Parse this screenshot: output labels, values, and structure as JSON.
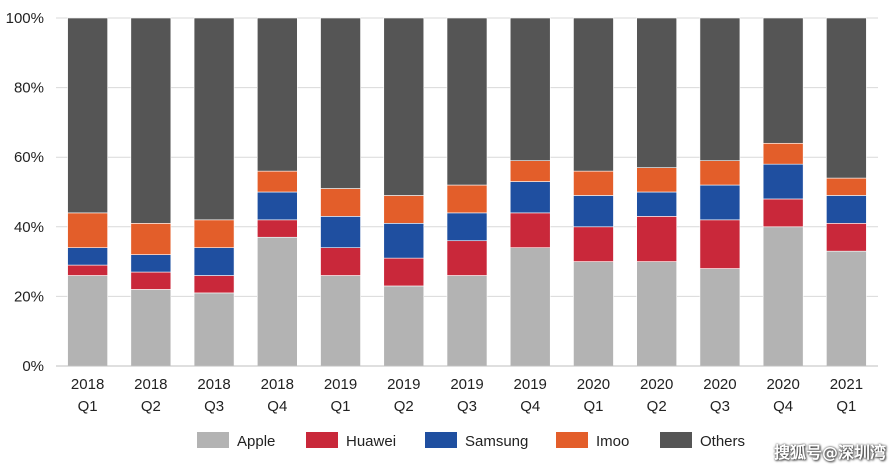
{
  "chart_data": {
    "type": "bar",
    "stacked": true,
    "categories": [
      [
        "2018",
        "Q1"
      ],
      [
        "2018",
        "Q2"
      ],
      [
        "2018",
        "Q3"
      ],
      [
        "2018",
        "Q4"
      ],
      [
        "2019",
        "Q1"
      ],
      [
        "2019",
        "Q2"
      ],
      [
        "2019",
        "Q3"
      ],
      [
        "2019",
        "Q4"
      ],
      [
        "2020",
        "Q1"
      ],
      [
        "2020",
        "Q2"
      ],
      [
        "2020",
        "Q3"
      ],
      [
        "2020",
        "Q4"
      ],
      [
        "2021",
        "Q1"
      ]
    ],
    "series": [
      {
        "name": "Apple",
        "color": "#b3b3b3",
        "values": [
          26,
          22,
          21,
          37,
          26,
          23,
          26,
          34,
          30,
          30,
          28,
          40,
          33
        ]
      },
      {
        "name": "Huawei",
        "color": "#c9283a",
        "values": [
          3,
          5,
          5,
          5,
          8,
          8,
          10,
          10,
          10,
          13,
          14,
          8,
          8
        ]
      },
      {
        "name": "Samsung",
        "color": "#1f4fa0",
        "values": [
          5,
          5,
          8,
          8,
          9,
          10,
          8,
          9,
          9,
          7,
          10,
          10,
          8
        ]
      },
      {
        "name": "Imoo",
        "color": "#e35e2a",
        "values": [
          10,
          9,
          8,
          6,
          8,
          8,
          8,
          6,
          7,
          7,
          7,
          6,
          5
        ]
      },
      {
        "name": "Others",
        "color": "#555555",
        "values": [
          56,
          59,
          58,
          44,
          49,
          51,
          48,
          41,
          44,
          43,
          41,
          36,
          46
        ]
      }
    ],
    "ylim": [
      0,
      100
    ],
    "yticks": [
      "0%",
      "20%",
      "40%",
      "60%",
      "80%",
      "100%"
    ],
    "title": "",
    "xlabel": "",
    "ylabel": "",
    "legend_position": "bottom",
    "grid": true
  },
  "watermark": "搜狐号@深圳湾"
}
